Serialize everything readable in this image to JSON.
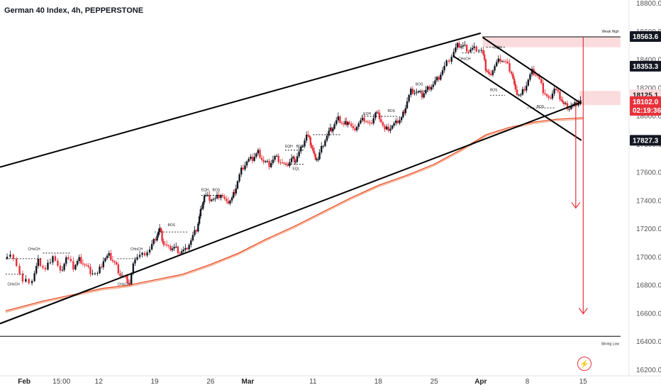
{
  "title": "German 40 Index, 4h, PEPPERSTONE",
  "chart_data": {
    "type": "candlestick",
    "ylim": [
      16200,
      18800
    ],
    "y_ticks": [
      "18800.0",
      "18600.0",
      "18400.0",
      "18200.0",
      "18000.0",
      "17800.0",
      "17600.0",
      "17400.0",
      "17200.0",
      "17000.0",
      "16800.0",
      "16600.0",
      "16400.0",
      "16200.0"
    ],
    "x_labels": [
      {
        "label": "Feb",
        "x": 1,
        "bold": true
      },
      {
        "label": "15:00",
        "x": 3,
        "bold": false
      },
      {
        "label": "12",
        "x": 5,
        "bold": false
      },
      {
        "label": "19",
        "x": 8,
        "bold": false
      },
      {
        "label": "26",
        "x": 11,
        "bold": false
      },
      {
        "label": "Mar",
        "x": 13,
        "bold": true
      },
      {
        "label": "11",
        "x": 16.5,
        "bold": false
      },
      {
        "label": "18",
        "x": 20,
        "bold": false
      },
      {
        "label": "25",
        "x": 23,
        "bold": false
      },
      {
        "label": "Apr",
        "x": 25.5,
        "bold": true
      },
      {
        "label": "8",
        "x": 28,
        "bold": false
      },
      {
        "label": "15",
        "x": 31,
        "bold": false
      }
    ],
    "price_path": [
      [
        0,
        16990
      ],
      [
        0.5,
        17010
      ],
      [
        1.0,
        16820
      ],
      [
        1.5,
        16840
      ],
      [
        1.8,
        16970
      ],
      [
        2.2,
        16910
      ],
      [
        2.6,
        17020
      ],
      [
        3.0,
        16890
      ],
      [
        3.3,
        17000
      ],
      [
        3.7,
        16930
      ],
      [
        4.0,
        16990
      ],
      [
        4.3,
        16950
      ],
      [
        4.6,
        16900
      ],
      [
        5.0,
        16880
      ],
      [
        5.3,
        16980
      ],
      [
        5.6,
        17010
      ],
      [
        5.9,
        16960
      ],
      [
        6.2,
        16880
      ],
      [
        6.5,
        16850
      ],
      [
        6.7,
        16810
      ],
      [
        7.0,
        17000
      ],
      [
        7.4,
        17020
      ],
      [
        7.8,
        17060
      ],
      [
        8.1,
        17140
      ],
      [
        8.3,
        17200
      ],
      [
        8.5,
        17100
      ],
      [
        8.8,
        17060
      ],
      [
        9.1,
        17070
      ],
      [
        9.4,
        17040
      ],
      [
        9.7,
        17050
      ],
      [
        10.0,
        17120
      ],
      [
        10.3,
        17200
      ],
      [
        10.5,
        17330
      ],
      [
        10.7,
        17440
      ],
      [
        11.0,
        17420
      ],
      [
        11.3,
        17410
      ],
      [
        11.6,
        17450
      ],
      [
        11.9,
        17380
      ],
      [
        12.2,
        17420
      ],
      [
        12.4,
        17500
      ],
      [
        12.7,
        17620
      ],
      [
        13.0,
        17680
      ],
      [
        13.3,
        17700
      ],
      [
        13.6,
        17750
      ],
      [
        13.9,
        17680
      ],
      [
        14.2,
        17660
      ],
      [
        14.5,
        17710
      ],
      [
        14.8,
        17680
      ],
      [
        15.1,
        17640
      ],
      [
        15.4,
        17700
      ],
      [
        15.6,
        17690
      ],
      [
        15.9,
        17770
      ],
      [
        16.2,
        17870
      ],
      [
        16.4,
        17810
      ],
      [
        16.6,
        17720
      ],
      [
        16.8,
        17700
      ],
      [
        17.1,
        17810
      ],
      [
        17.4,
        17890
      ],
      [
        17.6,
        17920
      ],
      [
        17.9,
        17980
      ],
      [
        18.2,
        17940
      ],
      [
        18.4,
        17970
      ],
      [
        18.7,
        17900
      ],
      [
        19.0,
        17950
      ],
      [
        19.3,
        17980
      ],
      [
        19.6,
        17940
      ],
      [
        19.9,
        18030
      ],
      [
        20.1,
        18000
      ],
      [
        20.4,
        17900
      ],
      [
        20.7,
        17920
      ],
      [
        21.0,
        17950
      ],
      [
        21.3,
        17990
      ],
      [
        21.5,
        18070
      ],
      [
        21.8,
        18180
      ],
      [
        22.1,
        18170
      ],
      [
        22.4,
        18150
      ],
      [
        22.7,
        18200
      ],
      [
        23.0,
        18230
      ],
      [
        23.3,
        18280
      ],
      [
        23.6,
        18350
      ],
      [
        24.0,
        18430
      ],
      [
        24.3,
        18500
      ],
      [
        24.6,
        18500
      ],
      [
        24.9,
        18470
      ],
      [
        25.2,
        18480
      ],
      [
        25.6,
        18470
      ],
      [
        25.8,
        18340
      ],
      [
        26.0,
        18290
      ],
      [
        26.3,
        18360
      ],
      [
        26.6,
        18410
      ],
      [
        26.9,
        18380
      ],
      [
        27.2,
        18310
      ],
      [
        27.4,
        18170
      ],
      [
        27.7,
        18150
      ],
      [
        28.0,
        18230
      ],
      [
        28.3,
        18320
      ],
      [
        28.6,
        18290
      ],
      [
        28.9,
        18180
      ],
      [
        29.2,
        18120
      ],
      [
        29.5,
        18200
      ],
      [
        29.8,
        18140
      ],
      [
        30.0,
        18080
      ],
      [
        30.3,
        18060
      ],
      [
        30.6,
        18080
      ],
      [
        30.9,
        18110
      ]
    ],
    "ema_series": [
      {
        "name": "",
        "color": "#e8471c",
        "values": [
          [
            0,
            16620
          ],
          [
            2,
            16690
          ],
          [
            3.8,
            16740
          ],
          [
            5.2,
            16780
          ],
          [
            6.5,
            16800
          ],
          [
            8,
            16840
          ],
          [
            9.5,
            16880
          ],
          [
            11,
            16950
          ],
          [
            12.5,
            17030
          ],
          [
            14,
            17130
          ],
          [
            15.5,
            17220
          ],
          [
            17,
            17320
          ],
          [
            18.5,
            17420
          ],
          [
            20,
            17510
          ],
          [
            21.5,
            17580
          ],
          [
            23,
            17660
          ],
          [
            24.4,
            17760
          ],
          [
            25.8,
            17870
          ],
          [
            27,
            17920
          ],
          [
            28.4,
            17960
          ],
          [
            29.6,
            17980
          ],
          [
            31,
            17990
          ]
        ]
      },
      {
        "name": "",
        "color": "#f5a88a",
        "values": [
          [
            0,
            16610
          ],
          [
            2,
            16680
          ],
          [
            3.8,
            16730
          ],
          [
            5.2,
            16770
          ],
          [
            6.5,
            16790
          ],
          [
            8,
            16830
          ],
          [
            9.5,
            16870
          ],
          [
            11,
            16940
          ],
          [
            12.5,
            17020
          ],
          [
            14,
            17120
          ],
          [
            15.5,
            17210
          ],
          [
            17,
            17310
          ],
          [
            18.5,
            17410
          ],
          [
            20,
            17500
          ],
          [
            21.5,
            17570
          ],
          [
            23,
            17650
          ],
          [
            24.4,
            17750
          ],
          [
            25.8,
            17860
          ],
          [
            27,
            17910
          ],
          [
            28.4,
            17950
          ],
          [
            29.6,
            17970
          ],
          [
            31,
            17980
          ]
        ]
      }
    ],
    "trendlines": [
      {
        "from": [
          -0.3,
          17640
        ],
        "to": [
          25.5,
          18590
        ]
      },
      {
        "from": [
          -0.3,
          16530
        ],
        "to": [
          30.9,
          18100
        ]
      },
      {
        "from": [
          25.6,
          18560
        ],
        "to": [
          30.9,
          18090
        ]
      },
      {
        "from": [
          24.0,
          18430
        ],
        "to": [
          30.9,
          17830
        ]
      }
    ],
    "zones": [
      {
        "y_top": 18560,
        "y_bottom": 18490,
        "x_from": 25.6,
        "x_to": 33,
        "color": "#fadcde"
      },
      {
        "y_top": 18180,
        "y_bottom": 18080,
        "x_from": 30.8,
        "x_to": 33,
        "color": "#fadcde"
      }
    ],
    "horizontal_lines": [
      {
        "y": 18563.6,
        "x_from": 25.6,
        "x_to": 33,
        "label": "Weak High"
      },
      {
        "y": 16440,
        "x_from": -0.3,
        "x_to": 33,
        "label": "Strong Low"
      }
    ],
    "arrows": [
      {
        "x": 30.6,
        "y_from": 18080,
        "y_to": 17350
      },
      {
        "x": 31.0,
        "y_from": 18563.6,
        "y_to": 16600
      }
    ],
    "structure_labels": [
      {
        "text": "CHoCH",
        "x": 1.2,
        "y": 17050
      },
      {
        "text": "CHoCH",
        "x": 0.1,
        "y": 16800
      },
      {
        "text": "CHoCH",
        "x": 6.0,
        "y": 16800
      },
      {
        "text": "CHoCH",
        "x": 6.7,
        "y": 17050
      },
      {
        "text": "BOS",
        "x": 8.7,
        "y": 17220
      },
      {
        "text": "EQH",
        "x": 10.5,
        "y": 17470
      },
      {
        "text": "BOS",
        "x": 11.1,
        "y": 17470
      },
      {
        "text": "EQH",
        "x": 15.0,
        "y": 17780
      },
      {
        "text": "BOS",
        "x": 15.6,
        "y": 17780
      },
      {
        "text": "EQL",
        "x": 15.4,
        "y": 17620
      },
      {
        "text": "EQH",
        "x": 19.2,
        "y": 18010
      },
      {
        "text": "BOS",
        "x": 20.5,
        "y": 18030
      },
      {
        "text": "BOS",
        "x": 22.0,
        "y": 18220
      },
      {
        "text": "CHoCH",
        "x": 24.3,
        "y": 18400
      },
      {
        "text": "EQH",
        "x": 26.2,
        "y": 18480
      },
      {
        "text": "BOS",
        "x": 26.0,
        "y": 18180
      },
      {
        "text": "BOS",
        "x": 28.5,
        "y": 18060
      }
    ],
    "dashed_levels": [
      {
        "y": 16990,
        "x_from": 0,
        "x_to": 2.0
      },
      {
        "y": 16880,
        "x_from": 0,
        "x_to": 1.0
      },
      {
        "y": 17030,
        "x_from": 2.0,
        "x_to": 3.5
      },
      {
        "y": 16990,
        "x_from": 6.0,
        "x_to": 7.0
      },
      {
        "y": 17180,
        "x_from": 8.0,
        "x_to": 9.8
      },
      {
        "y": 17440,
        "x_from": 10.5,
        "x_to": 11.6
      },
      {
        "y": 17760,
        "x_from": 15.0,
        "x_to": 16.0
      },
      {
        "y": 17660,
        "x_from": 15.0,
        "x_to": 16.0
      },
      {
        "y": 17870,
        "x_from": 16.5,
        "x_to": 18.0
      },
      {
        "y": 18000,
        "x_from": 19.1,
        "x_to": 21.0
      },
      {
        "y": 18180,
        "x_from": 21.7,
        "x_to": 22.8
      },
      {
        "y": 18450,
        "x_from": 24.5,
        "x_to": 25.2
      },
      {
        "y": 18490,
        "x_from": 25.8,
        "x_to": 26.8
      },
      {
        "y": 18150,
        "x_from": 26.0,
        "x_to": 26.8
      },
      {
        "y": 18060,
        "x_from": 28.0,
        "x_to": 29.5
      }
    ],
    "price_tags": [
      {
        "text": "18563.6",
        "y": 18563.6,
        "bg": "#131722",
        "fg": "#ffffff"
      },
      {
        "text": "18353.3",
        "y": 18353.3,
        "bg": "#131722",
        "fg": "#ffffff"
      },
      {
        "text": "18125.1",
        "y": 18150,
        "bg": "#fadcde",
        "fg": "#222222"
      },
      {
        "text": "18102.0",
        "y": 18102,
        "bg": "#e8313b",
        "fg": "#ffffff"
      },
      {
        "text": "02:19:36",
        "y": 18040,
        "bg": "#e8313b",
        "fg": "#ffffff"
      },
      {
        "text": "17827.3",
        "y": 17827.3,
        "bg": "#131722",
        "fg": "#ffffff"
      }
    ],
    "colors": {
      "up": "#131722",
      "down": "#e8313b",
      "line": "#000000",
      "arrow": "#e8313b"
    }
  }
}
